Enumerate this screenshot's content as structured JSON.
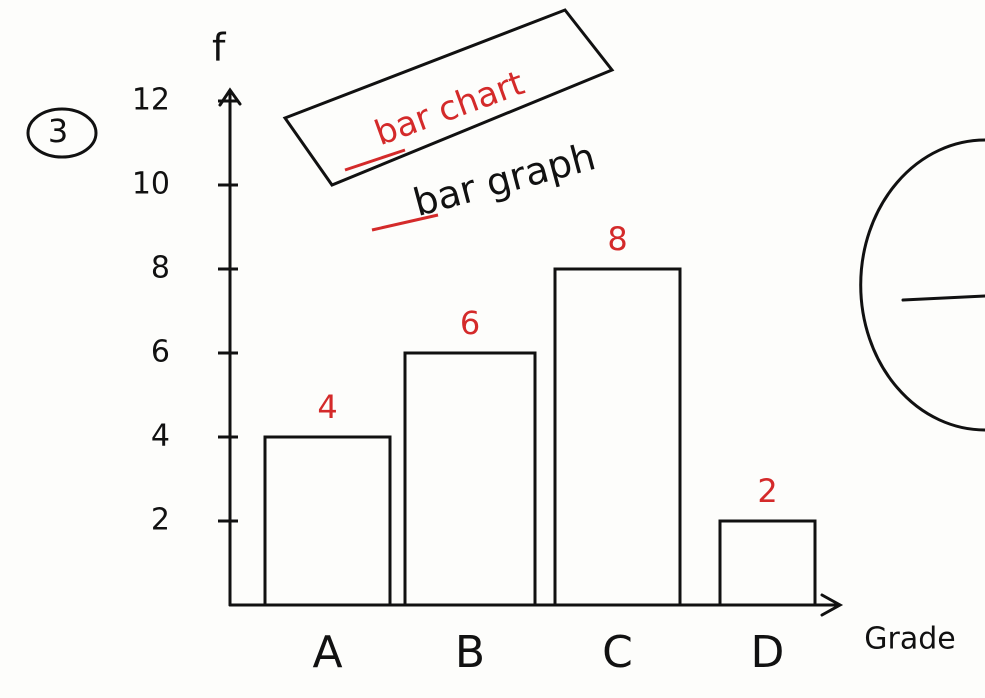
{
  "chart_data": {
    "type": "bar",
    "annotations": [
      "3",
      "bar chart",
      "bar graph"
    ],
    "y_label": "f",
    "x_label": "Grade",
    "categories": [
      "A",
      "B",
      "C",
      "D"
    ],
    "values": [
      4,
      6,
      8,
      2
    ],
    "color": "#111111",
    "label_color": "#d42a2a",
    "ylim": [
      0,
      12
    ],
    "yticks": [
      2,
      4,
      6,
      8,
      10,
      12
    ]
  }
}
